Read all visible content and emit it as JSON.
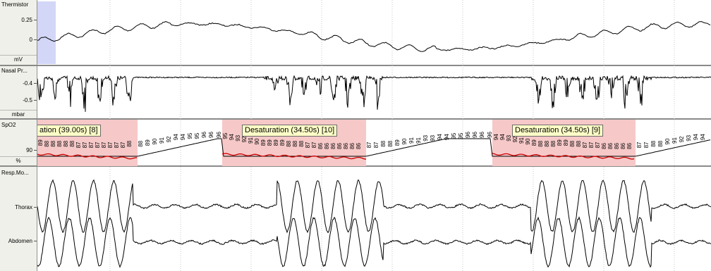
{
  "channels": {
    "thermistor": {
      "name": "Thermistor",
      "ticks": [
        "0.25",
        "0"
      ],
      "unit": "mV"
    },
    "nasal": {
      "name": "Nasal Pr...",
      "ticks": [
        "-0.4",
        "-0.5"
      ],
      "unit": "mbar"
    },
    "spo2": {
      "name": "SpO2",
      "ticks": [
        "90"
      ],
      "unit": "%"
    },
    "resp": {
      "name": "Resp.Mo...",
      "sub": [
        "Thorax",
        "Abdomen"
      ]
    }
  },
  "events": [
    {
      "label": "ation (39.00s) [8]",
      "start": 0,
      "end": 142
    },
    {
      "label": "Desaturation (34.50s) [10]",
      "start": 262,
      "end": 466
    },
    {
      "label": "Desaturation (34.50s) [9]",
      "start": 645,
      "end": 848
    }
  ],
  "spo2_values": [
    {
      "x": 4,
      "v": "89"
    },
    {
      "x": 13,
      "v": "88"
    },
    {
      "x": 22,
      "v": "88"
    },
    {
      "x": 31,
      "v": "88"
    },
    {
      "x": 40,
      "v": "88"
    },
    {
      "x": 49,
      "v": "88"
    },
    {
      "x": 58,
      "v": "87"
    },
    {
      "x": 67,
      "v": "87"
    },
    {
      "x": 76,
      "v": "87"
    },
    {
      "x": 85,
      "v": "87"
    },
    {
      "x": 94,
      "v": "87"
    },
    {
      "x": 103,
      "v": "87"
    },
    {
      "x": 112,
      "v": "87"
    },
    {
      "x": 121,
      "v": "87"
    },
    {
      "x": 130,
      "v": "88"
    },
    {
      "x": 146,
      "v": "88"
    },
    {
      "x": 156,
      "v": "89"
    },
    {
      "x": 166,
      "v": "90"
    },
    {
      "x": 176,
      "v": "91"
    },
    {
      "x": 186,
      "v": "92"
    },
    {
      "x": 196,
      "v": "94"
    },
    {
      "x": 206,
      "v": "94"
    },
    {
      "x": 216,
      "v": "95"
    },
    {
      "x": 226,
      "v": "95"
    },
    {
      "x": 236,
      "v": "96"
    },
    {
      "x": 246,
      "v": "96"
    },
    {
      "x": 257,
      "v": "96"
    },
    {
      "x": 266,
      "v": "95"
    },
    {
      "x": 275,
      "v": "94"
    },
    {
      "x": 284,
      "v": "93"
    },
    {
      "x": 293,
      "v": "92"
    },
    {
      "x": 302,
      "v": "91"
    },
    {
      "x": 311,
      "v": "90"
    },
    {
      "x": 320,
      "v": "89"
    },
    {
      "x": 329,
      "v": "89"
    },
    {
      "x": 338,
      "v": "89"
    },
    {
      "x": 347,
      "v": "89"
    },
    {
      "x": 356,
      "v": "88"
    },
    {
      "x": 365,
      "v": "88"
    },
    {
      "x": 374,
      "v": "88"
    },
    {
      "x": 383,
      "v": "87"
    },
    {
      "x": 392,
      "v": "87"
    },
    {
      "x": 401,
      "v": "86"
    },
    {
      "x": 410,
      "v": "86"
    },
    {
      "x": 419,
      "v": "86"
    },
    {
      "x": 428,
      "v": "86"
    },
    {
      "x": 437,
      "v": "86"
    },
    {
      "x": 446,
      "v": "86"
    },
    {
      "x": 455,
      "v": "86"
    },
    {
      "x": 470,
      "v": "87"
    },
    {
      "x": 480,
      "v": "87"
    },
    {
      "x": 490,
      "v": "88"
    },
    {
      "x": 500,
      "v": "88"
    },
    {
      "x": 510,
      "v": "89"
    },
    {
      "x": 520,
      "v": "90"
    },
    {
      "x": 530,
      "v": "91"
    },
    {
      "x": 540,
      "v": "91"
    },
    {
      "x": 550,
      "v": "93"
    },
    {
      "x": 560,
      "v": "93"
    },
    {
      "x": 570,
      "v": "94"
    },
    {
      "x": 580,
      "v": "94"
    },
    {
      "x": 590,
      "v": "95"
    },
    {
      "x": 600,
      "v": "95"
    },
    {
      "x": 610,
      "v": "96"
    },
    {
      "x": 620,
      "v": "96"
    },
    {
      "x": 630,
      "v": "96"
    },
    {
      "x": 641,
      "v": "96"
    },
    {
      "x": 650,
      "v": "94"
    },
    {
      "x": 659,
      "v": "94"
    },
    {
      "x": 668,
      "v": "93"
    },
    {
      "x": 677,
      "v": "92"
    },
    {
      "x": 686,
      "v": "91"
    },
    {
      "x": 695,
      "v": "90"
    },
    {
      "x": 704,
      "v": "89"
    },
    {
      "x": 713,
      "v": "88"
    },
    {
      "x": 722,
      "v": "88"
    },
    {
      "x": 731,
      "v": "88"
    },
    {
      "x": 740,
      "v": "89"
    },
    {
      "x": 749,
      "v": "89"
    },
    {
      "x": 758,
      "v": "88"
    },
    {
      "x": 767,
      "v": "88"
    },
    {
      "x": 776,
      "v": "87"
    },
    {
      "x": 785,
      "v": "87"
    },
    {
      "x": 794,
      "v": "87"
    },
    {
      "x": 803,
      "v": "86"
    },
    {
      "x": 812,
      "v": "86"
    },
    {
      "x": 821,
      "v": "86"
    },
    {
      "x": 830,
      "v": "86"
    },
    {
      "x": 839,
      "v": "86"
    },
    {
      "x": 853,
      "v": "87"
    },
    {
      "x": 863,
      "v": "87"
    },
    {
      "x": 873,
      "v": "88"
    },
    {
      "x": 883,
      "v": "88"
    },
    {
      "x": 893,
      "v": "90"
    },
    {
      "x": 903,
      "v": "91"
    },
    {
      "x": 913,
      "v": "92"
    },
    {
      "x": 923,
      "v": "93"
    },
    {
      "x": 933,
      "v": "94"
    },
    {
      "x": 943,
      "v": "94"
    }
  ],
  "colors": {
    "event_fill": "#f6c8c8",
    "event_line": "#cc0000",
    "label_fill": "#ffffc8",
    "selection": "#c8ccf4"
  }
}
